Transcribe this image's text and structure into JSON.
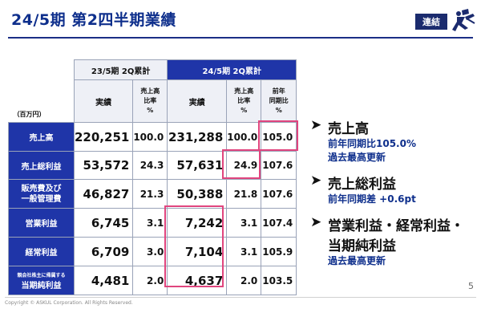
{
  "header": {
    "title": "24/5期 第2四半期業績",
    "badge": "連結",
    "logo_icon": "askul-runner-icon"
  },
  "table": {
    "unit": "（百万円）",
    "group_prev": "23/5期 2Q累計",
    "group_cur": "24/5期 2Q累計",
    "col_actual": "実績",
    "col_ratio": [
      "売上高",
      "比率",
      "%"
    ],
    "col_yoy": [
      "前年",
      "同期比",
      "%"
    ],
    "rows": [
      {
        "label": "売上高",
        "prev_actual": "220,251",
        "prev_ratio": "100.0",
        "cur_actual": "231,288",
        "cur_ratio": "100.0",
        "yoy": "105.0"
      },
      {
        "label": "売上総利益",
        "prev_actual": "53,572",
        "prev_ratio": "24.3",
        "cur_actual": "57,631",
        "cur_ratio": "24.9",
        "yoy": "107.6"
      },
      {
        "label_line1": "販売費及び",
        "label_line2": "一般管理費",
        "prev_actual": "46,827",
        "prev_ratio": "21.3",
        "cur_actual": "50,388",
        "cur_ratio": "21.8",
        "yoy": "107.6"
      },
      {
        "label": "営業利益",
        "prev_actual": "6,745",
        "prev_ratio": "3.1",
        "cur_actual": "7,242",
        "cur_ratio": "3.1",
        "yoy": "107.4"
      },
      {
        "label": "経常利益",
        "prev_actual": "6,709",
        "prev_ratio": "3.0",
        "cur_actual": "7,104",
        "cur_ratio": "3.1",
        "yoy": "105.9"
      },
      {
        "label_small": "親会社株主に帰属する",
        "label": "当期純利益",
        "prev_actual": "4,481",
        "prev_ratio": "2.0",
        "cur_actual": "4,637",
        "cur_ratio": "2.0",
        "yoy": "103.5"
      }
    ]
  },
  "bullets": [
    {
      "head": "売上高",
      "lines": [
        "前年同期比105.0%",
        "過去最高更新"
      ]
    },
    {
      "head": "売上総利益",
      "lines": [
        "前年同期差 +0.6pt"
      ]
    },
    {
      "head": "営業利益・経常利益・",
      "head2": "当期純利益",
      "lines": [
        "過去最高更新"
      ]
    }
  ],
  "footer": {
    "copyright": "Copyright © ASKUL Corporation. All Rights Reserved.",
    "page": "5"
  },
  "colors": {
    "navy": "#1f35a8",
    "highlight": "#e0457e",
    "title": "#0e2f8c"
  }
}
